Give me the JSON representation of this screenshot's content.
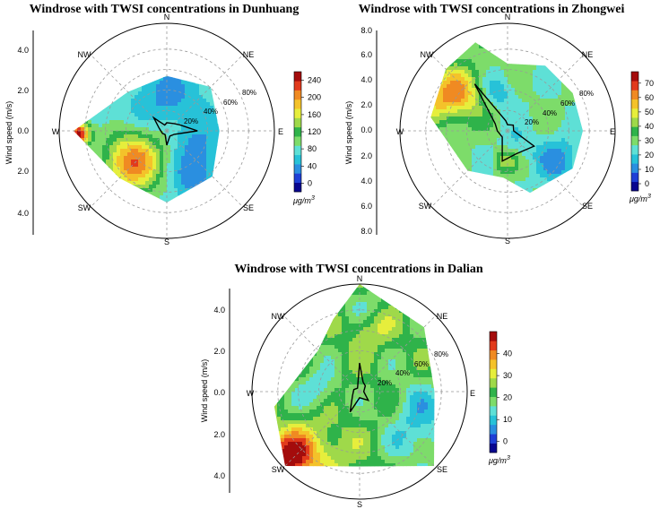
{
  "colors": {
    "scale": [
      "#08068f",
      "#1e3fd6",
      "#2a8fe0",
      "#27c2d8",
      "#5ee0d6",
      "#7ddc6a",
      "#2fb34a",
      "#9fd94a",
      "#e6ee3c",
      "#f4c22a",
      "#f08a22",
      "#e23a1c",
      "#a40c0c"
    ],
    "grid": "#999999",
    "rose_line": "#000000"
  },
  "chart_data": [
    {
      "type": "polar-contour",
      "title": "Windrose with TWSI concentrations in Dunhuang",
      "ylabel": "Wind speed (m/s)",
      "ytick_labels": [
        "4.0",
        "2.0",
        "0.0",
        "2.0",
        "4.0"
      ],
      "directions": [
        "N",
        "NE",
        "E",
        "SE",
        "S",
        "SW",
        "W",
        "NW"
      ],
      "pct_labels": [
        "20%",
        "40%",
        "60%",
        "80%"
      ],
      "pct_values": [
        20,
        40,
        60,
        80
      ],
      "r_max": 4.5,
      "colorbar": {
        "ticks": [
          "0",
          "40",
          "80",
          "120",
          "160",
          "200",
          "240"
        ],
        "tick_values": [
          0,
          40,
          80,
          120,
          160,
          200,
          240
        ],
        "range": [
          -20,
          260
        ],
        "unit_prefix": "μg/m",
        "unit_exp": "3"
      },
      "coverage": [
        [
          0,
          2.3
        ],
        [
          45,
          2.6
        ],
        [
          90,
          2.2
        ],
        [
          135,
          2.7
        ],
        [
          180,
          3.0
        ],
        [
          225,
          2.8
        ],
        [
          270,
          3.9
        ],
        [
          315,
          2.3
        ]
      ],
      "background_value": 70,
      "hotspots": [
        {
          "dir": 226,
          "speed": 1.9,
          "value": 215,
          "spread": 0.9
        },
        {
          "dir": 268,
          "speed": 3.7,
          "value": 250,
          "spread": 0.35
        },
        {
          "dir": 150,
          "speed": 2.0,
          "value": 25,
          "spread": 0.7
        },
        {
          "dir": 110,
          "speed": 1.4,
          "value": 45,
          "spread": 0.6
        },
        {
          "dir": 5,
          "speed": 1.6,
          "value": 35,
          "spread": 0.7
        },
        {
          "dir": 300,
          "speed": 1.0,
          "value": 55,
          "spread": 0.6
        }
      ],
      "wind_frequency": [
        [
          0,
          8
        ],
        [
          45,
          10
        ],
        [
          65,
          14
        ],
        [
          90,
          30
        ],
        [
          115,
          8
        ],
        [
          150,
          6
        ],
        [
          180,
          14
        ],
        [
          205,
          4
        ],
        [
          240,
          5
        ],
        [
          290,
          8
        ],
        [
          315,
          18
        ],
        [
          340,
          6
        ]
      ]
    },
    {
      "type": "polar-contour",
      "title": "Windrose with TWSI concentrations in Zhongwei",
      "ylabel": "Wind speed (m/s)",
      "ytick_labels": [
        "8.0",
        "6.0",
        "4.0",
        "2.0",
        "0.0",
        "2.0",
        "4.0",
        "6.0",
        "8.0"
      ],
      "directions": [
        "N",
        "NE",
        "E",
        "SE",
        "S",
        "SW",
        "W",
        "NW"
      ],
      "pct_labels": [
        "20%",
        "40%",
        "60%",
        "80%"
      ],
      "pct_values": [
        20,
        40,
        60,
        80
      ],
      "r_max": 8.0,
      "colorbar": {
        "ticks": [
          "0",
          "10",
          "20",
          "30",
          "40",
          "50",
          "60",
          "70"
        ],
        "tick_values": [
          0,
          10,
          20,
          30,
          40,
          50,
          60,
          70
        ],
        "range": [
          -5,
          78
        ],
        "unit_prefix": "μg/m",
        "unit_exp": "3"
      },
      "coverage": [
        [
          0,
          5.0
        ],
        [
          30,
          5.6
        ],
        [
          60,
          5.6
        ],
        [
          90,
          5.6
        ],
        [
          120,
          5.6
        ],
        [
          160,
          4.9
        ],
        [
          185,
          3.5
        ],
        [
          225,
          4.2
        ],
        [
          280,
          5.8
        ],
        [
          315,
          6.5
        ],
        [
          340,
          7.0
        ]
      ],
      "background_value": 28,
      "hotspots": [
        {
          "dir": 308,
          "speed": 4.6,
          "value": 58,
          "spread": 1.4
        },
        {
          "dir": 290,
          "speed": 6.0,
          "value": 42,
          "spread": 1.2
        },
        {
          "dir": 120,
          "speed": 4.5,
          "value": 12,
          "spread": 1.3
        },
        {
          "dir": 345,
          "speed": 3.0,
          "value": 14,
          "spread": 0.9
        },
        {
          "dir": 185,
          "speed": 2.2,
          "value": 44,
          "spread": 0.6
        },
        {
          "dir": 150,
          "speed": 1.2,
          "value": 20,
          "spread": 0.8
        }
      ],
      "wind_frequency": [
        [
          0,
          6
        ],
        [
          45,
          8
        ],
        [
          90,
          6
        ],
        [
          120,
          30
        ],
        [
          160,
          24
        ],
        [
          190,
          30
        ],
        [
          220,
          8
        ],
        [
          270,
          10
        ],
        [
          300,
          14
        ],
        [
          325,
          56
        ],
        [
          350,
          10
        ]
      ]
    },
    {
      "type": "polar-contour",
      "title": "Windrose with TWSI concentrations in Dalian",
      "ylabel": "Wind speed (m/s)",
      "ytick_labels": [
        "4.0",
        "2.0",
        "0.0",
        "2.0",
        "4.0"
      ],
      "directions": [
        "N",
        "NE",
        "E",
        "SE",
        "S",
        "SW",
        "W",
        "NW"
      ],
      "pct_labels": [
        "20%",
        "40%",
        "60%",
        "80%"
      ],
      "pct_values": [
        20,
        40,
        60,
        80
      ],
      "r_max": 4.6,
      "colorbar": {
        "ticks": [
          "0",
          "10",
          "20",
          "30",
          "40"
        ],
        "tick_values": [
          0,
          10,
          20,
          30,
          40
        ],
        "range": [
          -5,
          50
        ],
        "unit_prefix": "μg/m",
        "unit_exp": "3"
      },
      "coverage": [
        [
          0,
          4.6
        ],
        [
          45,
          3.9
        ],
        [
          90,
          3.2
        ],
        [
          135,
          4.5
        ],
        [
          180,
          3.2
        ],
        [
          225,
          4.5
        ],
        [
          260,
          3.7
        ],
        [
          315,
          2.5
        ],
        [
          340,
          3.3
        ]
      ],
      "background_value": 22,
      "hotspots": [
        {
          "dir": 228,
          "speed": 4.2,
          "value": 46,
          "spread": 0.7
        },
        {
          "dir": 215,
          "speed": 3.2,
          "value": 32,
          "spread": 1.0
        },
        {
          "dir": 105,
          "speed": 2.6,
          "value": 14,
          "spread": 1.0
        },
        {
          "dir": 130,
          "speed": 3.4,
          "value": 14,
          "spread": 0.9
        },
        {
          "dir": 272,
          "speed": 1.8,
          "value": 12,
          "spread": 0.6
        },
        {
          "dir": 2,
          "speed": 3.8,
          "value": 15,
          "spread": 0.5
        },
        {
          "dir": 8,
          "speed": 2.6,
          "value": 30,
          "spread": 0.6
        }
      ],
      "wind_frequency": [
        [
          0,
          28
        ],
        [
          20,
          10
        ],
        [
          45,
          8
        ],
        [
          90,
          4
        ],
        [
          135,
          12
        ],
        [
          180,
          6
        ],
        [
          205,
          22
        ],
        [
          240,
          8
        ],
        [
          290,
          6
        ],
        [
          330,
          4
        ]
      ]
    }
  ]
}
